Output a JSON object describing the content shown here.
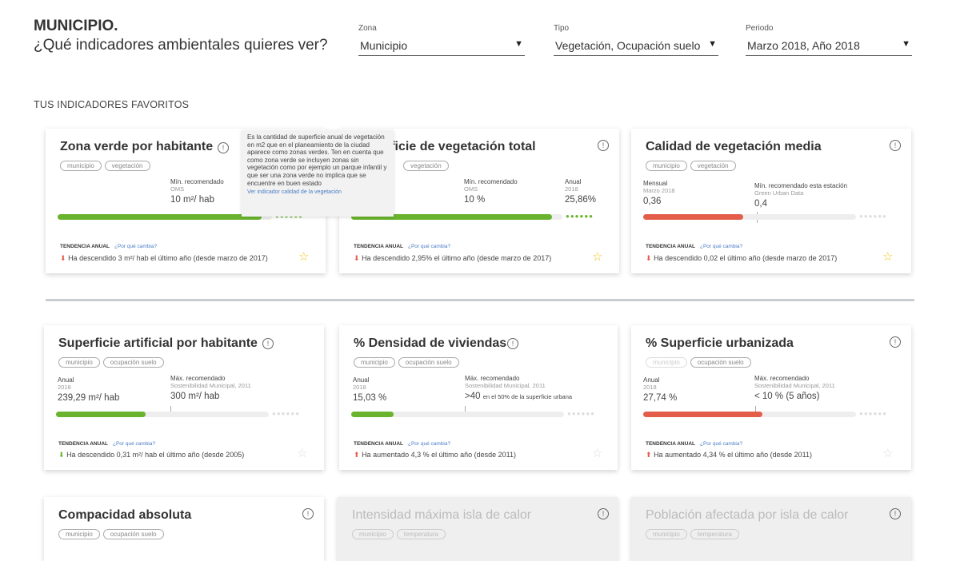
{
  "header": {
    "brand": "MUNICIPIO.",
    "question": "¿Qué indicadores ambientales quieres ver?"
  },
  "filters": {
    "zona": {
      "label": "Zona",
      "value": "Municipio"
    },
    "tipo": {
      "label": "Tipo",
      "value": "Vegetación, Ocupación suelo"
    },
    "periodo": {
      "label": "Periodo",
      "value": "Marzo 2018, Año 2018"
    }
  },
  "section_title": "TUS INDICADORES FAVORITOS",
  "tooltip": {
    "text": "Es la cantidad de superficie anual de vegetación en m2 que en el planeamiento de la ciudad aparece como zonas verdes. Ten en cuenta que como zona verde se incluyen zonas sin vegetación como por ejemplo un parque infantil y que ser una zona verde no implica que se encuentre en buen estado",
    "link": "Ver indicador calidad de la vegetación"
  },
  "common": {
    "trend_label": "TENDENCIA ANUAL",
    "why_label": "¿Por qué cambia?",
    "info_glyph": "!",
    "star_glyph": "☆",
    "down_glyph": "⬇",
    "up_glyph": "⬆",
    "dots": "●●●●●●"
  },
  "colors": {
    "green": "#6ab32e",
    "red": "#e35d4a",
    "track": "#eeeeee",
    "dots_inactive": "#dddddd"
  },
  "cards": [
    {
      "title": "Zona verde por habitante",
      "tags": [
        "municipio",
        "vegetación"
      ],
      "right_label": "Mín. recomendado",
      "right_sub": "OMS",
      "right_value": "10 m²/ hab",
      "progress": 0.95,
      "color": "green",
      "trend": "Ha descendido 3 m²/ hab el último año (desde marzo de 2017)",
      "trend_dir": "down",
      "star": "gold"
    },
    {
      "title": "Superficie de vegetación total",
      "title_visible": "rficie de vegetación total",
      "tags": [
        "vegetación"
      ],
      "mid_label": "Mín. recomendado",
      "mid_sub": "OMS",
      "mid_value": "10 %",
      "right_label": "Anual",
      "right_sub": "2018",
      "right_value": "25,86%",
      "progress": 0.95,
      "color": "green",
      "trend": "Ha descendido 2,95% el último año (desde marzo de 2017)",
      "trend_dir": "down",
      "star": "gold"
    },
    {
      "title": "Calidad de vegetación media",
      "tags": [
        "municipio",
        "vegetación"
      ],
      "left_label": "Mensual",
      "left_sub": "Marzo 2018",
      "left_value": "0,36",
      "right_label": "Mín. recomendado esta estación",
      "right_sub": "Green Urban Data",
      "right_value": "0,4",
      "progress": 0.47,
      "color": "red",
      "trend": "Ha descendido 0,02 el último año (desde marzo de 2017)",
      "trend_dir": "down",
      "star": "gold"
    },
    {
      "title": "Superficie artificial por habitante",
      "tags": [
        "municipio",
        "ocupación suelo"
      ],
      "left_label": "Anual",
      "left_sub": "2018",
      "left_value": "239,29 m²/ hab",
      "right_label": "Máx. recomendado",
      "right_sub": "Sostenibilidad Municipal, 2011",
      "right_value": "300 m²/ hab",
      "progress": 0.42,
      "color": "green",
      "trend": "Ha descendido 0,31 m²/ hab el último año (desde 2005)",
      "trend_dir": "down-good",
      "star": "grey"
    },
    {
      "title": "% Densidad de viviendas",
      "tags": [
        "municipio",
        "ocupación suelo"
      ],
      "left_label": "Anual",
      "left_sub": "2018",
      "left_value": "15,03 %",
      "right_label": "Máx. recomendado",
      "right_sub": "Sostenibilidad Municipal, 2011",
      "right_value": ">40",
      "right_value_extra": "en el 50% de la superficie urbana",
      "progress": 0.2,
      "color": "green",
      "trend": "Ha aumentado 4,3 % el último año (desde 2011)",
      "trend_dir": "up",
      "star": "grey"
    },
    {
      "title": "% Superficie urbanizada",
      "tags": [
        "municipio",
        "ocupación suelo"
      ],
      "left_label": "Anual",
      "left_sub": "2018",
      "left_value": "27,74 %",
      "right_label": "Máx. recomendado",
      "right_sub": "Sostenibilidad Municipal, 2011",
      "right_value": "< 10 % (5 años)",
      "progress": 0.56,
      "color": "red",
      "trend": "Ha aumentado 4,34 % el último año (desde 2011)",
      "trend_dir": "up",
      "star": "grey"
    },
    {
      "title": "Compacidad absoluta",
      "tags": [
        "municipio",
        "ocupación suelo"
      ]
    },
    {
      "title": "Intensidad máxima isla de calor",
      "tags": [
        "municipio",
        "temperatura"
      ],
      "disabled": true
    },
    {
      "title": "Población afectada por isla de calor",
      "tags": [
        "municipio",
        "temperatura"
      ],
      "disabled": true
    }
  ]
}
